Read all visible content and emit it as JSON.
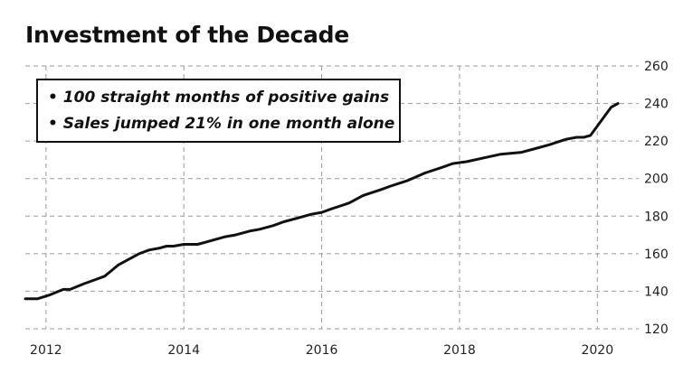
{
  "chart_data": {
    "type": "line",
    "title": "Investment of the Decade",
    "xlabel": "",
    "ylabel": "",
    "xlim": [
      2011.7,
      2020.6
    ],
    "ylim": [
      120,
      260
    ],
    "x_ticks": [
      2012,
      2014,
      2016,
      2018,
      2020
    ],
    "y_ticks": [
      120,
      140,
      160,
      180,
      200,
      220,
      240,
      260
    ],
    "grid": true,
    "y_axis_position": "right",
    "annotations": [
      "• 100 straight months of positive gains",
      "• Sales jumped 21% in one month alone"
    ],
    "series": [
      {
        "x": [
          2011.7,
          2011.88,
          2012.05,
          2012.25,
          2012.35,
          2012.55,
          2012.7,
          2012.85,
          2012.95,
          2013.05,
          2013.2,
          2013.35,
          2013.5,
          2013.65,
          2013.75,
          2013.85,
          2014.0,
          2014.2,
          2014.3,
          2014.5,
          2014.6,
          2014.75,
          2014.95,
          2015.1,
          2015.3,
          2015.45,
          2015.65,
          2015.85,
          2016.0,
          2016.15,
          2016.4,
          2016.6,
          2016.85,
          2017.0,
          2017.25,
          2017.5,
          2017.75,
          2017.9,
          2018.1,
          2018.35,
          2018.6,
          2018.9,
          2019.1,
          2019.3,
          2019.55,
          2019.7,
          2019.8,
          2019.9,
          2020.0,
          2020.1,
          2020.2,
          2020.3
        ],
        "y": [
          136,
          136,
          138,
          141,
          141,
          144,
          146,
          148,
          151,
          154,
          157,
          160,
          162,
          163,
          164,
          164,
          165,
          165,
          166,
          168,
          169,
          170,
          172,
          173,
          175,
          177,
          179,
          181,
          182,
          184,
          187,
          191,
          194,
          196,
          199,
          203,
          206,
          208,
          209,
          211,
          213,
          214,
          216,
          218,
          221,
          222,
          222,
          223,
          228,
          233,
          238,
          240
        ]
      }
    ]
  }
}
